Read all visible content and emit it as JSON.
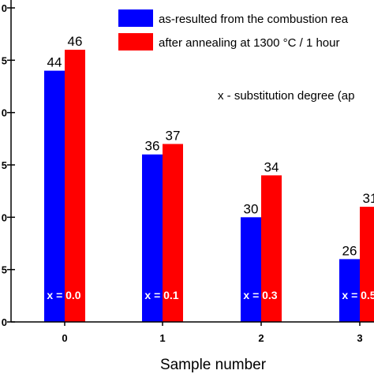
{
  "colors": {
    "series_a": "#0000ff",
    "series_b": "#ff0000",
    "axis": "#000000",
    "annotation_text": "#ffffff"
  },
  "chart_data": {
    "type": "bar",
    "xlabel": "Sample number",
    "ylabel": "",
    "categories": [
      "0",
      "1",
      "2",
      "3"
    ],
    "ylim": [
      20,
      50
    ],
    "series": [
      {
        "name": "as-resulted from the combustion rea",
        "values": [
          44,
          36,
          30,
          26
        ],
        "labels": [
          "44",
          "36",
          "30",
          "26"
        ]
      },
      {
        "name": "after annealing at 1300 °C / 1 hour",
        "values": [
          46,
          37,
          34,
          31
        ],
        "labels": [
          "46",
          "37",
          "34",
          "31"
        ]
      }
    ],
    "annotations": [
      "x = 0.0",
      "x = 0.1",
      "x = 0.3",
      "x = 0.5"
    ],
    "note": "x - substitution degree (ap",
    "y_tick_labels": [
      "0",
      "5",
      "0",
      "5",
      "0",
      "5",
      "0"
    ],
    "legend_position": "top-right",
    "grid": false
  }
}
